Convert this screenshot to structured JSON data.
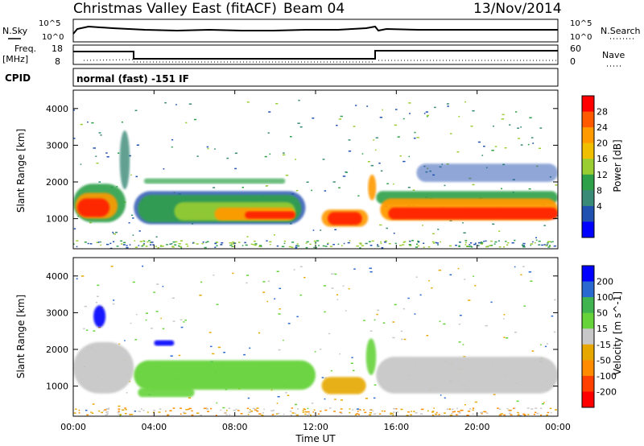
{
  "header": {
    "title": "Christmas Valley East (fitACF)",
    "beam": "Beam 04",
    "date": "13/Nov/2014"
  },
  "noise_panel": {
    "left_label": "N.Sky",
    "right_label": "N.Search",
    "left_ticks": [
      "10^5",
      "10^0"
    ],
    "right_ticks": [
      "10^5",
      "10^0"
    ]
  },
  "freq_panel": {
    "left_label_1": "Freq.",
    "left_label_2": "[MHz]",
    "right_label": "Nave",
    "left_ticks": [
      "18",
      "8"
    ],
    "right_ticks": [
      "60",
      "0"
    ]
  },
  "cpid": {
    "label": "CPID",
    "value": "normal (fast) -151 IF"
  },
  "chart_data": [
    {
      "type": "heatmap",
      "title": "Power",
      "ylabel": "Slant Range [km]",
      "xlabel": "Time UT",
      "y_ticks": [
        "1000",
        "2000",
        "3000",
        "4000"
      ],
      "ylim": [
        180,
        4500
      ],
      "colorbar": {
        "label": "Power [dB]",
        "ticks": [
          "28",
          "24",
          "20",
          "16",
          "12",
          "8",
          "4"
        ],
        "colors": [
          "#ff0000",
          "#ff5a00",
          "#ff9a00",
          "#f0c000",
          "#9acd32",
          "#2ea04a",
          "#3a8a78",
          "#2050b0",
          "#0000ff"
        ]
      },
      "features": [
        {
          "name": "early band",
          "time": "00:00-02:40",
          "range_km": "900-1900",
          "peak_db": 28
        },
        {
          "name": "main band",
          "time": "03:00-11:30",
          "range_km": "900-1700",
          "peak_db": 28
        },
        {
          "name": "midday patch",
          "time": "12:30-14:30",
          "range_km": "800-1200",
          "peak_db": 28
        },
        {
          "name": "late band",
          "time": "15:00-24:00",
          "range_km": "900-1600",
          "peak_db": 28
        }
      ]
    },
    {
      "type": "heatmap",
      "title": "Velocity",
      "ylabel": "Slant Range [km]",
      "xlabel": "Time UT",
      "y_ticks": [
        "1000",
        "2000",
        "3000",
        "4000"
      ],
      "ylim": [
        180,
        4500
      ],
      "colorbar": {
        "label": "Velocity [m s^-1]",
        "ticks": [
          "200",
          "100",
          "50",
          "15",
          "-15",
          "-50",
          "-100",
          "-200"
        ],
        "colors": [
          "#0000ff",
          "#2a6ad0",
          "#3fb44f",
          "#66d33a",
          "#c8c8c8",
          "#e6a800",
          "#ff8c00",
          "#ff4000",
          "#ff0000"
        ]
      },
      "features": [
        {
          "name": "positive velocity band",
          "time": "03:00-12:00",
          "range_km": "900-1700",
          "velocity": "15 to 100"
        },
        {
          "name": "ground scatter",
          "time": "00:00-03:00",
          "range_km": "800-2200",
          "velocity": "-15 to 15"
        },
        {
          "name": "ground scatter",
          "time": "15:00-24:00",
          "range_km": "800-1800",
          "velocity": "-15 to 15"
        },
        {
          "name": "blue patch",
          "time": "04:00-05:00",
          "range_km": "2100-2250",
          "velocity": ">200"
        }
      ]
    }
  ],
  "x_axis": {
    "ticks": [
      "00:00",
      "04:00",
      "08:00",
      "12:00",
      "16:00",
      "20:00",
      "00:00"
    ],
    "label": "Time UT"
  }
}
